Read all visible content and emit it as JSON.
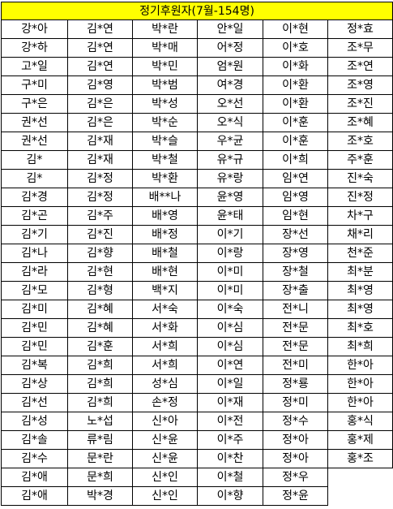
{
  "title": "정기후원자(7월-154명)",
  "rows": [
    [
      "강*아",
      "김*연",
      "박*란",
      "안*일",
      "이*현",
      "정*효"
    ],
    [
      "강*하",
      "김*연",
      "박*매",
      "어*정",
      "이*호",
      "조*무"
    ],
    [
      "고*일",
      "김*연",
      "박*민",
      "엄*원",
      "이*화",
      "조*연"
    ],
    [
      "구*미",
      "김*영",
      "박*범",
      "여*경",
      "이*환",
      "조*영"
    ],
    [
      "구*은",
      "김*은",
      "박*성",
      "오*선",
      "이*환",
      "조*진"
    ],
    [
      "권*선",
      "김*은",
      "박*순",
      "오*식",
      "이*훈",
      "조*혜"
    ],
    [
      "권*선",
      "김*재",
      "박*슬",
      "우*균",
      "이*훈",
      "조*호"
    ],
    [
      "김*",
      "김*재",
      "박*철",
      "유*규",
      "이*희",
      "주*훈"
    ],
    [
      "김*",
      "김*정",
      "박*환",
      "유*랑",
      "임*연",
      "진*숙"
    ],
    [
      "김*경",
      "김*정",
      "배**나",
      "윤*영",
      "임*영",
      "진*정"
    ],
    [
      "김*곤",
      "김*주",
      "배*영",
      "윤*태",
      "임*현",
      "차*구"
    ],
    [
      "김*기",
      "김*진",
      "배*정",
      "이*기",
      "장*선",
      "채*리"
    ],
    [
      "김*나",
      "김*향",
      "배*철",
      "이*랑",
      "장*영",
      "천*준"
    ],
    [
      "김*라",
      "김*현",
      "배*현",
      "이*미",
      "장*철",
      "최*분"
    ],
    [
      "김*모",
      "김*형",
      "백*지",
      "이*미",
      "장*출",
      "최*영"
    ],
    [
      "김*미",
      "김*혜",
      "서*숙",
      "이*숙",
      "전*니",
      "최*영"
    ],
    [
      "김*민",
      "김*혜",
      "서*화",
      "이*심",
      "전*문",
      "최*호"
    ],
    [
      "김*민",
      "김*훈",
      "서*희",
      "이*심",
      "전*문",
      "최*희"
    ],
    [
      "김*복",
      "김*희",
      "서*희",
      "이*연",
      "전*미",
      "한*아"
    ],
    [
      "김*상",
      "김*희",
      "성*심",
      "이*일",
      "정*룡",
      "한*아"
    ],
    [
      "김*선",
      "김*희",
      "손*정",
      "이*재",
      "정*미",
      "한*아"
    ],
    [
      "김*성",
      "노*섭",
      "신*아",
      "이*전",
      "정*수",
      "홍*식"
    ],
    [
      "김*솔",
      "류*림",
      "신*윤",
      "이*주",
      "정*아",
      "홍*제"
    ],
    [
      "김*수",
      "문*란",
      "신*윤",
      "이*찬",
      "정*아",
      "홍*조"
    ],
    [
      "김*애",
      "문*희",
      "신*인",
      "이*철",
      "정*우",
      ""
    ],
    [
      "김*애",
      "박*경",
      "신*인",
      "이*향",
      "정*윤",
      ""
    ]
  ]
}
